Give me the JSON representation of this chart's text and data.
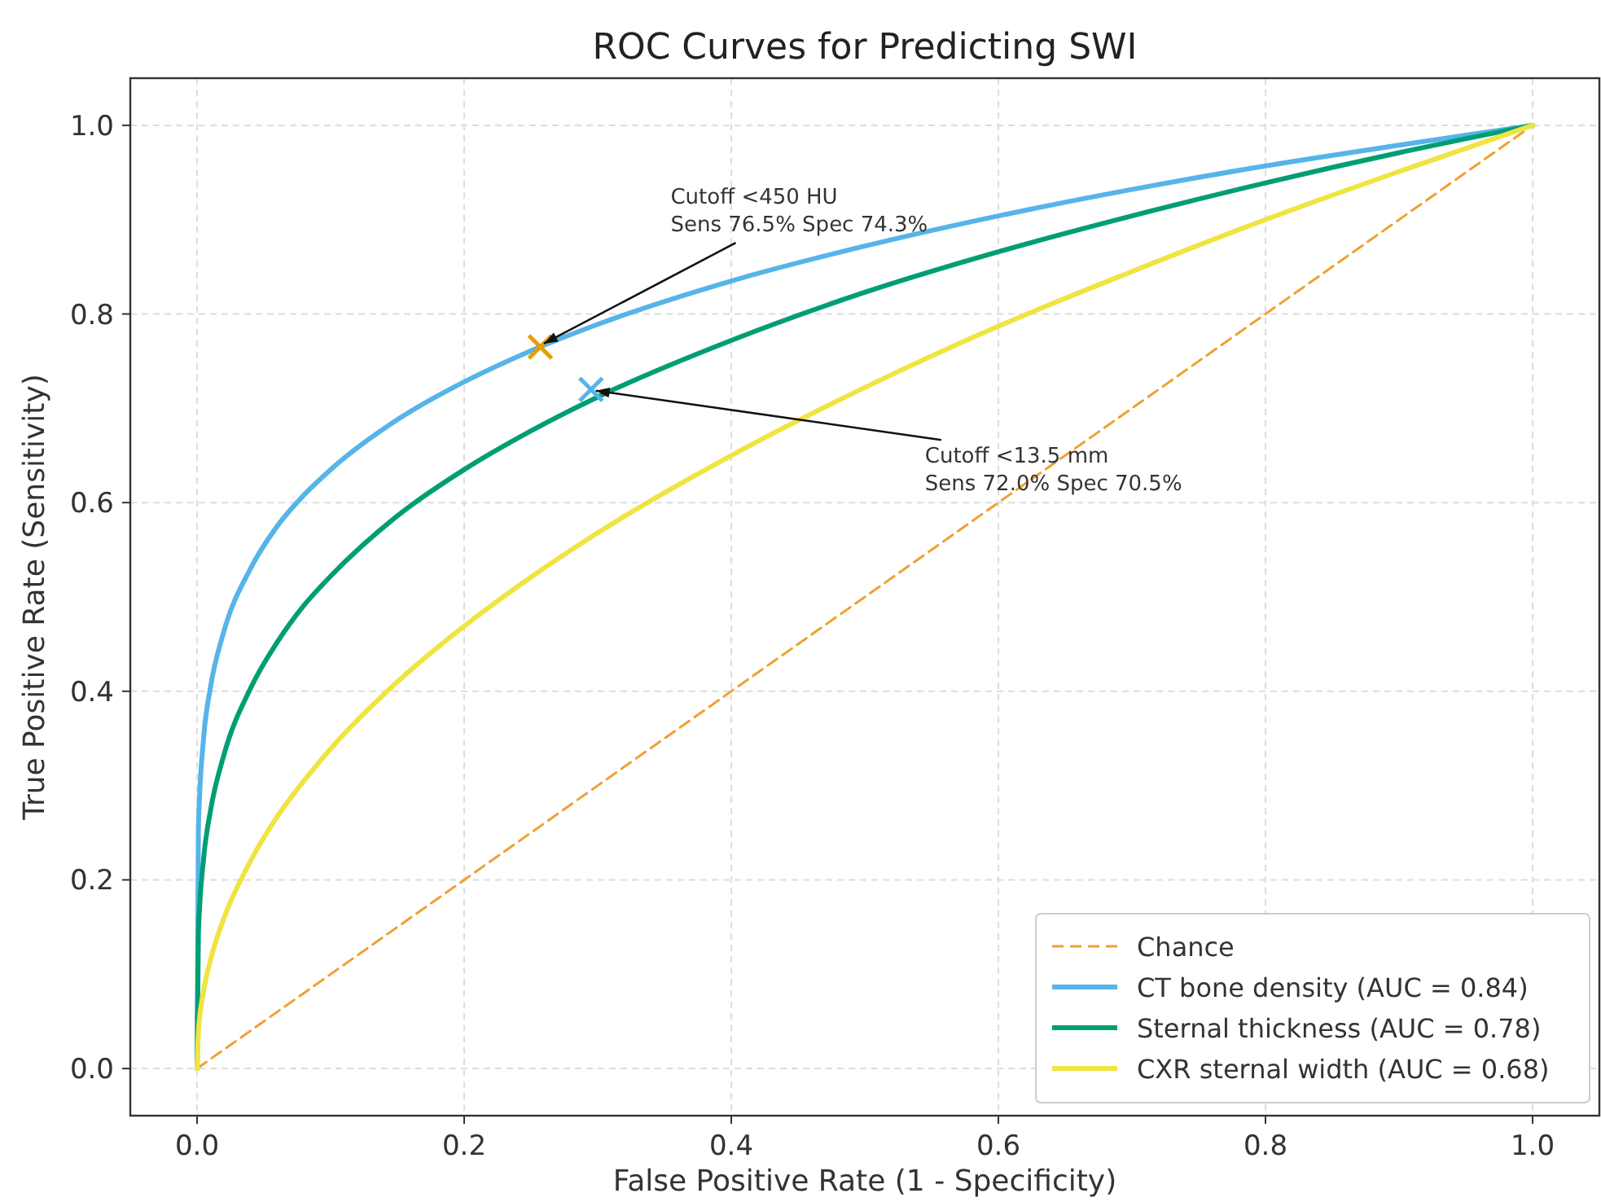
{
  "chart_data": {
    "type": "line",
    "title": "ROC Curves for Predicting SWI",
    "xlabel": "False Positive Rate (1 - Specificity)",
    "ylabel": "True Positive Rate (Sensitivity)",
    "xlim": [
      -0.05,
      1.05
    ],
    "ylim": [
      -0.05,
      1.05
    ],
    "xticks": [
      {
        "value": 0,
        "label": "0.0"
      },
      {
        "value": 0.2,
        "label": "0.2"
      },
      {
        "value": 0.4,
        "label": "0.4"
      },
      {
        "value": 0.6,
        "label": "0.6"
      },
      {
        "value": 0.8,
        "label": "0.8"
      },
      {
        "value": 1,
        "label": "1.0"
      }
    ],
    "yticks": [
      {
        "value": 0,
        "label": "0.0"
      },
      {
        "value": 0.2,
        "label": "0.2"
      },
      {
        "value": 0.4,
        "label": "0.4"
      },
      {
        "value": 0.6,
        "label": "0.6"
      },
      {
        "value": 0.8,
        "label": "0.8"
      },
      {
        "value": 1,
        "label": "1.0"
      }
    ],
    "grid": true,
    "legend": "bottom right",
    "marker": "none",
    "series": [
      {
        "name": "Chance",
        "color": "#f0a030",
        "line_style": "dashed",
        "x": [
          0,
          1
        ],
        "values": [
          0,
          1
        ]
      },
      {
        "name": "CT bone density (AUC = 0.84)",
        "color": "#56b4e9",
        "x": [
          0,
          0.001,
          0.005,
          0.01,
          0.02,
          0.04,
          0.06,
          0.08,
          0.1,
          0.15,
          0.2,
          0.25,
          0.3,
          0.4,
          0.5,
          0.6,
          0.7,
          0.8,
          0.9,
          1
        ],
        "values": [
          0,
          0.256,
          0.352,
          0.404,
          0.463,
          0.53,
          0.575,
          0.608,
          0.635,
          0.688,
          0.728,
          0.761,
          0.789,
          0.835,
          0.872,
          0.904,
          0.932,
          0.957,
          0.979,
          1
        ]
      },
      {
        "name": "Sternal thickness (AUC = 0.78)",
        "color": "#009e73",
        "x": [
          0,
          0.001,
          0.005,
          0.01,
          0.02,
          0.04,
          0.06,
          0.08,
          0.1,
          0.15,
          0.2,
          0.25,
          0.3,
          0.4,
          0.5,
          0.6,
          0.7,
          0.8,
          0.9,
          1
        ],
        "values": [
          0,
          0.143,
          0.224,
          0.273,
          0.332,
          0.403,
          0.452,
          0.491,
          0.522,
          0.586,
          0.635,
          0.676,
          0.712,
          0.772,
          0.823,
          0.866,
          0.904,
          0.939,
          0.971,
          1
        ]
      },
      {
        "name": "CXR sternal width (AUC = 0.68)",
        "color": "#f0e442",
        "x": [
          0,
          0.001,
          0.005,
          0.01,
          0.02,
          0.04,
          0.06,
          0.08,
          0.1,
          0.15,
          0.2,
          0.25,
          0.3,
          0.4,
          0.5,
          0.6,
          0.7,
          0.8,
          0.9,
          1
        ],
        "values": [
          0,
          0.039,
          0.083,
          0.115,
          0.159,
          0.22,
          0.267,
          0.305,
          0.339,
          0.41,
          0.469,
          0.521,
          0.568,
          0.65,
          0.722,
          0.787,
          0.845,
          0.9,
          0.951,
          1
        ]
      },
      {
        "type": "scatter",
        "marker": "cross",
        "color": "#e69f00",
        "x": [
          0.257
        ],
        "values": [
          0.765
        ]
      },
      {
        "type": "scatter",
        "marker": "cross",
        "color": "#56b4e9",
        "x": [
          0.295
        ],
        "values": [
          0.72
        ]
      }
    ],
    "annotations": [
      {
        "text": "Cutoff <450 HU\nSens 76.5%  Spec 74.3%",
        "x": 0.257,
        "y": 0.765
      },
      {
        "text": "Cutoff <13.5 mm\nSens 72.0%  Spec 70.5%",
        "x": 0.295,
        "y": 0.72
      }
    ]
  }
}
